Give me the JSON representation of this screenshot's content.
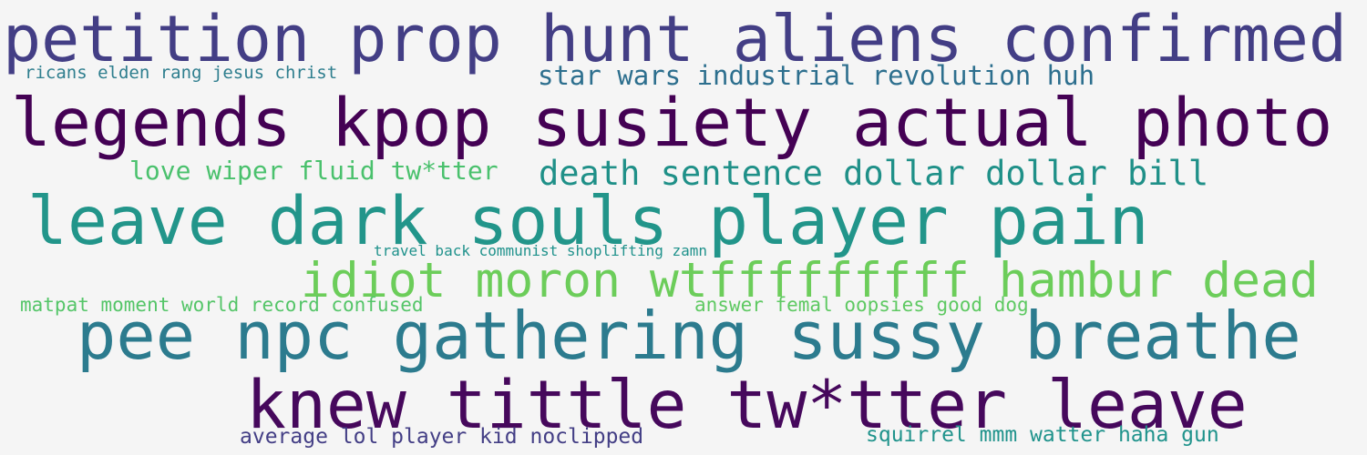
{
  "phrases": [
    {
      "text": "petition prop hunt aliens confirmed",
      "color": "#433e85"
    },
    {
      "text": "ricans elden rang jesus christ",
      "color": "#2e7e8e"
    },
    {
      "text": "star wars industrial revolution huh",
      "color": "#2d6f8e"
    },
    {
      "text": "legends kpop susiety actual photo",
      "color": "#440154"
    },
    {
      "text": "love wiper fluid tw*tter",
      "color": "#4ac16d"
    },
    {
      "text": "death sentence dollar dollar bill",
      "color": "#1f9088"
    },
    {
      "text": "leave dark souls player pain",
      "color": "#22958a"
    },
    {
      "text": "travel back communist shoplifting zamn",
      "color": "#20928c"
    },
    {
      "text": "idiot moron wtfffffffff hambur  dead",
      "color": "#6ccd5a"
    },
    {
      "text": "matpat moment world record confused",
      "color": "#54c568"
    },
    {
      "text": "answer femal oopsies good dog",
      "color": "#5ec962"
    },
    {
      "text": "pee npc gathering sussy breathe",
      "color": "#2c7b8e"
    },
    {
      "text": "knew tittle tw*tter leave",
      "color": "#46085c"
    },
    {
      "text": "average lol player kid noclipped",
      "color": "#433e85"
    },
    {
      "text": "squirrel mmm watter haha gun",
      "color": "#20938c"
    }
  ],
  "background": "#f5f5f5"
}
